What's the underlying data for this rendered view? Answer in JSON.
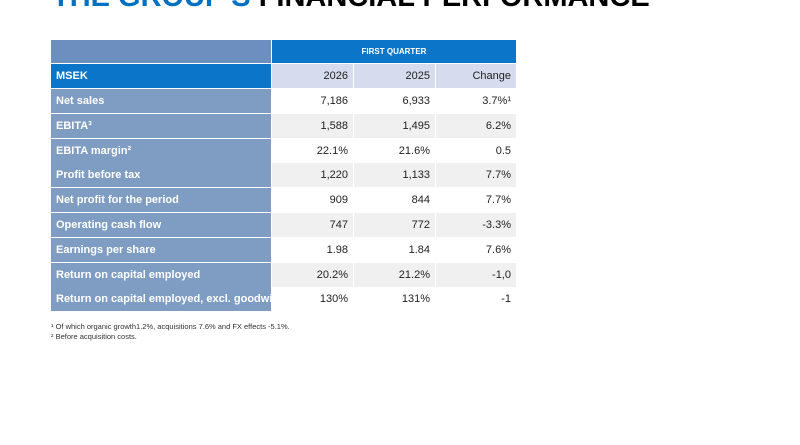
{
  "header": {
    "title_part1": "THE GROUP'S",
    "title_part2": "FINANCIAL PERFORMANCE"
  },
  "table": {
    "group_header": "FIRST QUARTER",
    "columns": [
      "MSEK",
      "2026",
      "2025",
      "Change"
    ],
    "rows": [
      [
        "Net sales",
        "7,186",
        "6,933",
        "3.7%¹"
      ],
      [
        "EBITA³",
        "1,588",
        "1,495",
        "6.2%"
      ],
      [
        "EBITA margin²",
        "22.1%",
        "21.6%",
        "0.5"
      ],
      [
        "Profit before tax",
        "1,220",
        "1,133",
        "7.7%"
      ],
      [
        "Net profit for the period",
        "909",
        "844",
        "7.7%"
      ],
      [
        "Operating cash flow",
        "747",
        "772",
        "-3.3%"
      ],
      [
        "Earnings per share",
        "1.98",
        "1.84",
        "7.6%"
      ],
      [
        "Return on capital employed",
        "20.2%",
        "21.2%",
        "-1,0"
      ],
      [
        "Return on capital employed, excl. goodwill",
        "130%",
        "131%",
        "-1"
      ]
    ]
  },
  "footnotes": [
    "¹ Of which organic growth1.2%, acquisitions 7.6% and FX effects -5.1%.",
    "² Before acquisition costs."
  ]
}
